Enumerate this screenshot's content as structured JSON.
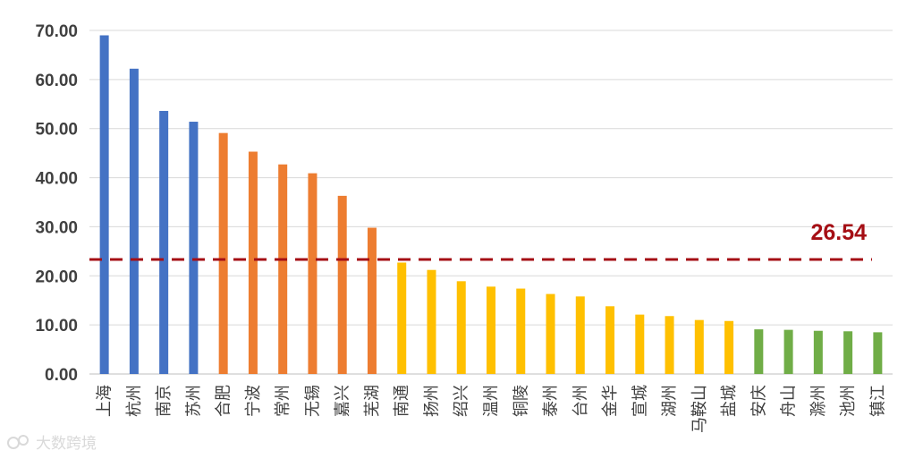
{
  "chart_data": {
    "type": "bar",
    "categories": [
      "上海",
      "杭州",
      "南京",
      "苏州",
      "合肥",
      "宁波",
      "常州",
      "无锡",
      "嘉兴",
      "芜湖",
      "南通",
      "扬州",
      "绍兴",
      "温州",
      "铜陵",
      "泰州",
      "台州",
      "金华",
      "宣城",
      "湖州",
      "马鞍山",
      "盐城",
      "安庆",
      "舟山",
      "滁州",
      "池州",
      "镇江"
    ],
    "values": [
      69.0,
      62.2,
      53.6,
      51.4,
      49.1,
      45.3,
      42.7,
      40.9,
      36.3,
      29.8,
      22.7,
      21.2,
      18.9,
      17.8,
      17.4,
      16.3,
      15.8,
      13.8,
      12.1,
      11.8,
      11.0,
      10.8,
      9.1,
      9.0,
      8.8,
      8.7,
      8.5
    ],
    "bar_colors": [
      "#4472c4",
      "#4472c4",
      "#4472c4",
      "#4472c4",
      "#ed7d31",
      "#ed7d31",
      "#ed7d31",
      "#ed7d31",
      "#ed7d31",
      "#ed7d31",
      "#ffc000",
      "#ffc000",
      "#ffc000",
      "#ffc000",
      "#ffc000",
      "#ffc000",
      "#ffc000",
      "#ffc000",
      "#ffc000",
      "#ffc000",
      "#ffc000",
      "#ffc000",
      "#70ad47",
      "#70ad47",
      "#70ad47",
      "#70ad47",
      "#70ad47"
    ],
    "ylim": [
      0,
      70
    ],
    "yticks": [
      "0.00",
      "10.00",
      "20.00",
      "30.00",
      "40.00",
      "50.00",
      "60.00",
      "70.00"
    ],
    "reference_line": {
      "label": "26.54",
      "color": "#a50f15",
      "style": "dashed"
    },
    "grid": true,
    "legend": "none"
  },
  "watermark": {
    "text": "大数跨境"
  }
}
